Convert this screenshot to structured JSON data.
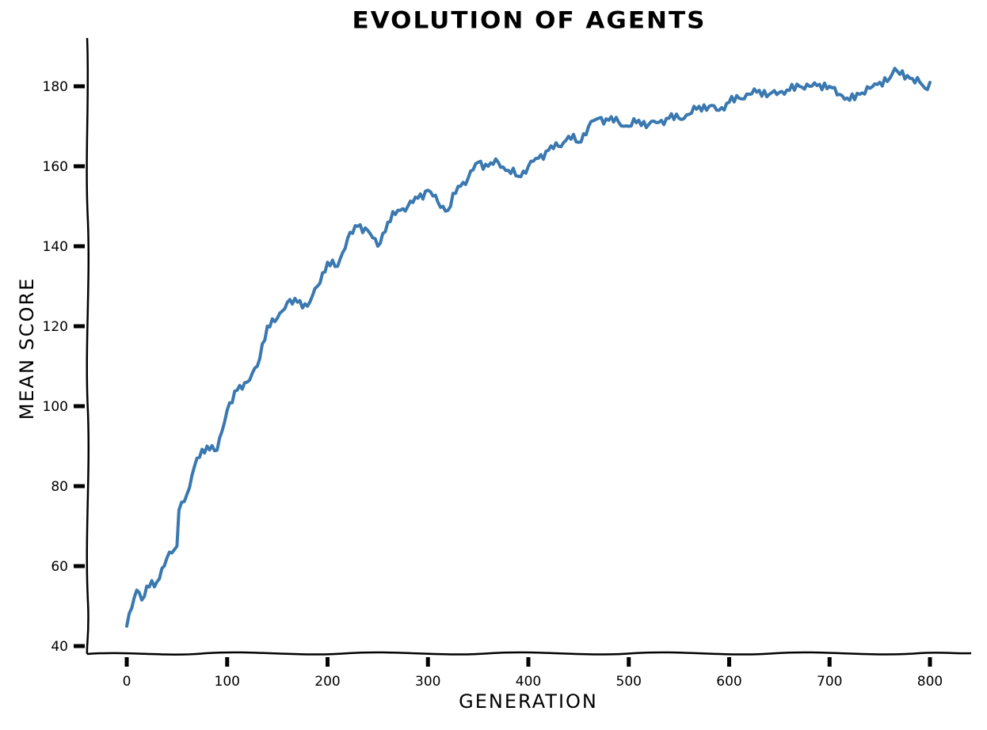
{
  "chart": {
    "title": "EVOLUTION OF AGENTS",
    "xlabel": "GENERATION",
    "ylabel": "MEAN SCORE",
    "line_color": "#3a78b0"
  },
  "chart_data": {
    "type": "line",
    "title": "Evolution of Agents",
    "xlabel": "Generation",
    "ylabel": "Mean Score",
    "style": "xkcd",
    "grid": false,
    "legend": null,
    "xlim": [
      -40,
      840
    ],
    "ylim": [
      38,
      192
    ],
    "x_ticks": [
      0,
      100,
      200,
      300,
      400,
      500,
      600,
      700,
      800
    ],
    "y_ticks": [
      40,
      60,
      80,
      100,
      120,
      140,
      160,
      180
    ],
    "series": [
      {
        "name": "mean score",
        "color": "#3a78b0",
        "x": [
          0,
          5,
          10,
          15,
          20,
          30,
          40,
          50,
          52,
          60,
          70,
          80,
          90,
          100,
          110,
          120,
          130,
          140,
          150,
          160,
          170,
          180,
          190,
          200,
          210,
          220,
          230,
          240,
          250,
          260,
          270,
          280,
          290,
          300,
          310,
          320,
          330,
          340,
          350,
          360,
          370,
          380,
          390,
          400,
          410,
          420,
          430,
          440,
          450,
          460,
          470,
          480,
          490,
          500,
          510,
          520,
          530,
          540,
          550,
          560,
          570,
          580,
          590,
          600,
          610,
          620,
          630,
          640,
          650,
          660,
          670,
          680,
          690,
          700,
          710,
          720,
          730,
          740,
          750,
          760,
          765,
          770,
          780,
          790,
          795,
          800
        ],
        "values": [
          45,
          49.5,
          54,
          51.5,
          55,
          56,
          62,
          65,
          74,
          78,
          87,
          90,
          89,
          99,
          104,
          106,
          110,
          120,
          122,
          126,
          126,
          125,
          130,
          136,
          135,
          142,
          145,
          144,
          140,
          146,
          149,
          150,
          152,
          154,
          151,
          149,
          155,
          157,
          161,
          160,
          161,
          159,
          157.5,
          160,
          162,
          164,
          165,
          167.5,
          166,
          170,
          172,
          171.5,
          171,
          170,
          171.5,
          170.5,
          171,
          172,
          172,
          173,
          175,
          175,
          174,
          176,
          177,
          178,
          179,
          178,
          178.5,
          179,
          180,
          180,
          180.5,
          180,
          178,
          176.5,
          178,
          179.5,
          181,
          182,
          184.5,
          183,
          182,
          181,
          179.5,
          181
        ]
      }
    ]
  }
}
